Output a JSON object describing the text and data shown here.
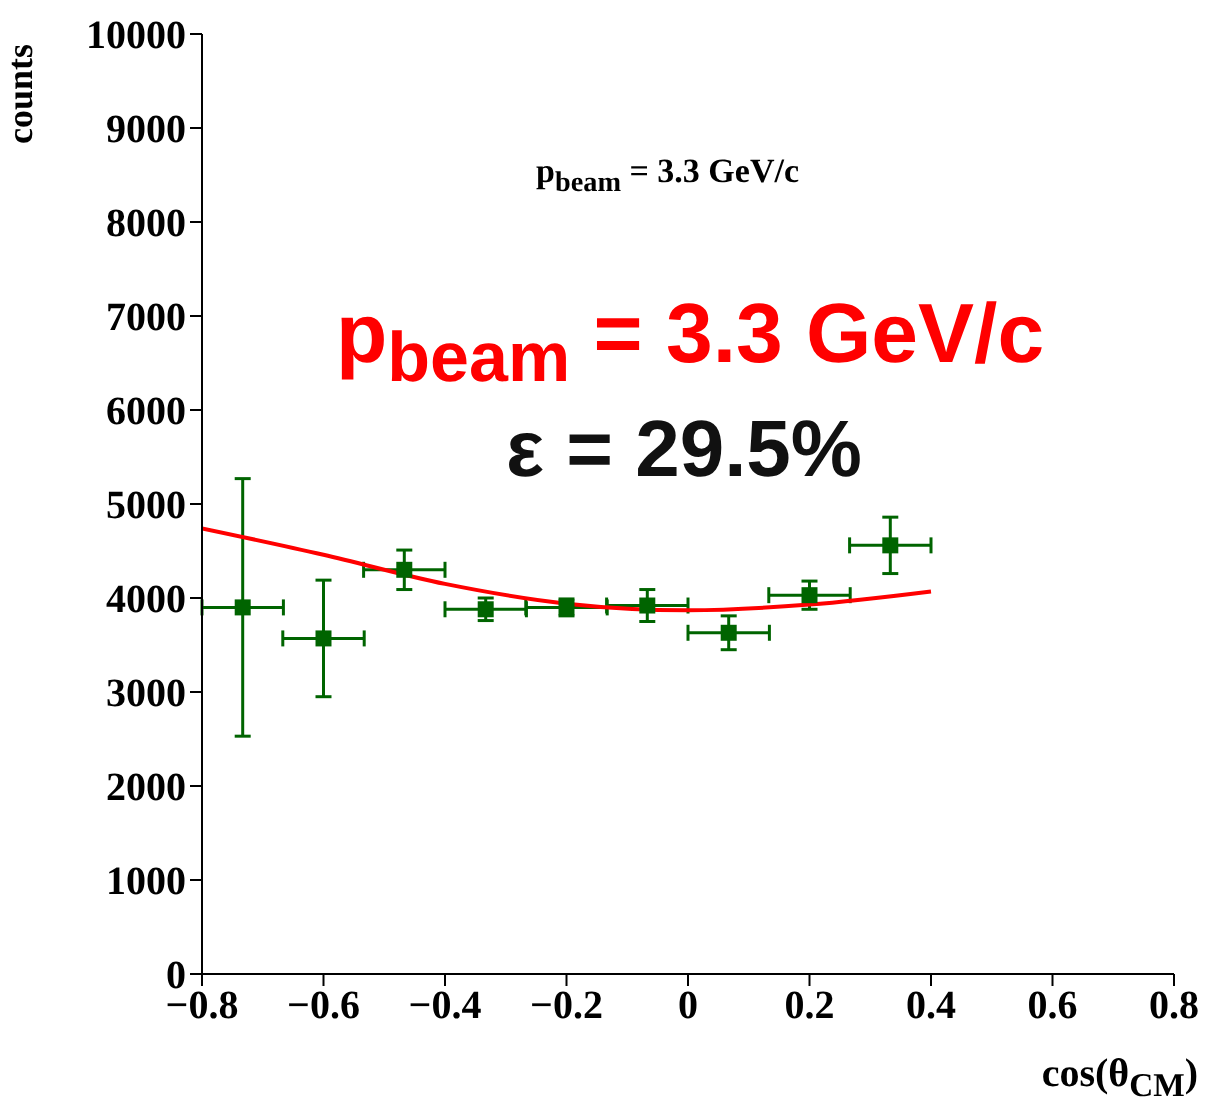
{
  "chart_data": {
    "type": "scatter",
    "xlabel": "cos(θ$_{CM}$)",
    "ylabel": "counts",
    "annotations": [
      "p$_{beam}$ = 3.3 GeV/c",
      "p$_{beam}$ = 3.3 GeV/c",
      "ε = 29.5%"
    ],
    "xlim": [
      -0.8,
      0.8
    ],
    "ylim": [
      0,
      10000
    ],
    "xticks": [
      {
        "value": -0.8,
        "label": "−0.8"
      },
      {
        "value": -0.6,
        "label": "−0.6"
      },
      {
        "value": -0.4,
        "label": "−0.4"
      },
      {
        "value": -0.2,
        "label": "−0.2"
      },
      0,
      0.2,
      0.4,
      0.6,
      0.8
    ],
    "yticks": [
      0,
      1000,
      2000,
      3000,
      4000,
      5000,
      6000,
      7000,
      8000,
      9000,
      10000
    ],
    "grid": false,
    "legend": false,
    "series": [
      {
        "marker": "square",
        "color": "#006400",
        "x": [
          -0.733,
          -0.6,
          -0.467,
          -0.333,
          -0.2,
          -0.067,
          0.067,
          0.2,
          0.333
        ],
        "values": [
          3900,
          3570,
          4300,
          3880,
          3900,
          3920,
          3630,
          4030,
          4560
        ],
        "errors": [
          1370,
          620,
          210,
          120,
          90,
          170,
          180,
          150,
          300
        ],
        "xerrors": [
          0.067,
          0.067,
          0.067,
          0.067,
          0.067,
          0.067,
          0.067,
          0.067,
          0.067
        ]
      },
      {
        "type": "line",
        "color": "#ff0000",
        "x": [
          -0.8,
          -0.6,
          -0.4,
          -0.2,
          0,
          0.2,
          0.4
        ],
        "values": [
          4740,
          4460,
          4150,
          3940,
          3870,
          3930,
          4070
        ]
      }
    ]
  }
}
